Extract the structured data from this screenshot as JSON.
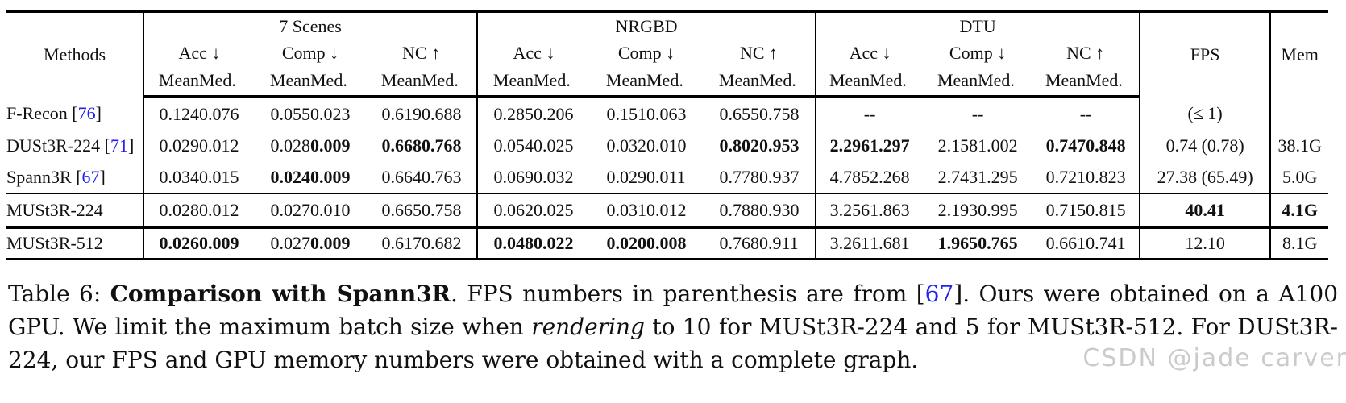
{
  "table": {
    "methods_label": "Methods",
    "fps_label": "FPS",
    "mem_label": "Mem",
    "sub_mean": "Mean",
    "sub_med": "Med.",
    "groups": [
      {
        "label": "7 Scenes",
        "metrics": [
          "Acc ↓",
          "Comp ↓",
          "NC ↑"
        ]
      },
      {
        "label": "NRGBD",
        "metrics": [
          "Acc ↓",
          "Comp ↓",
          "NC ↑"
        ]
      },
      {
        "label": "DTU",
        "metrics": [
          "Acc ↓",
          "Comp ↓",
          "NC ↑"
        ]
      }
    ],
    "rows": [
      {
        "method": "F-Recon",
        "ref": "76",
        "section": 0,
        "vals": [
          "0.124",
          "0.076",
          "0.055",
          "0.023",
          "0.619",
          "0.688",
          "0.285",
          "0.206",
          "0.151",
          "0.063",
          "0.655",
          "0.758",
          "-",
          "-",
          "-",
          "-",
          "-",
          "-"
        ],
        "bold": [],
        "fps": "(≤ 1)",
        "fps_bold": false,
        "mem": "",
        "mem_bold": false
      },
      {
        "method": "DUSt3R-224",
        "ref": "71",
        "section": 0,
        "vals": [
          "0.029",
          "0.012",
          "0.028",
          "0.009",
          "0.668",
          "0.768",
          "0.054",
          "0.025",
          "0.032",
          "0.010",
          "0.802",
          "0.953",
          "2.296",
          "1.297",
          "2.158",
          "1.002",
          "0.747",
          "0.848"
        ],
        "bold": [
          3,
          4,
          5,
          10,
          11,
          12,
          13,
          16,
          17
        ],
        "fps": "0.74 (0.78)",
        "fps_bold": false,
        "mem": "38.1G",
        "mem_bold": false
      },
      {
        "method": "Spann3R",
        "ref": "67",
        "section": 0,
        "vals": [
          "0.034",
          "0.015",
          "0.024",
          "0.009",
          "0.664",
          "0.763",
          "0.069",
          "0.032",
          "0.029",
          "0.011",
          "0.778",
          "0.937",
          "4.785",
          "2.268",
          "2.743",
          "1.295",
          "0.721",
          "0.823"
        ],
        "bold": [
          2,
          3
        ],
        "fps": "27.38 (65.49)",
        "fps_bold": false,
        "mem": "5.0G",
        "mem_bold": false
      },
      {
        "method": "MUSt3R-224",
        "ref": "",
        "section": 1,
        "vals": [
          "0.028",
          "0.012",
          "0.027",
          "0.010",
          "0.665",
          "0.758",
          "0.062",
          "0.025",
          "0.031",
          "0.012",
          "0.788",
          "0.930",
          "3.256",
          "1.863",
          "2.193",
          "0.995",
          "0.715",
          "0.815"
        ],
        "bold": [],
        "fps": "40.41",
        "fps_bold": true,
        "mem": "4.1G",
        "mem_bold": true
      },
      {
        "method": "MUSt3R-512",
        "ref": "",
        "section": 2,
        "vals": [
          "0.026",
          "0.009",
          "0.027",
          "0.009",
          "0.617",
          "0.682",
          "0.048",
          "0.022",
          "0.020",
          "0.008",
          "0.768",
          "0.911",
          "3.261",
          "1.681",
          "1.965",
          "0.765",
          "0.661",
          "0.741"
        ],
        "bold": [
          0,
          1,
          3,
          6,
          7,
          8,
          9,
          14,
          15
        ],
        "fps": "12.10",
        "fps_bold": false,
        "mem": "8.1G",
        "mem_bold": false
      }
    ]
  },
  "caption": {
    "segments": [
      {
        "t": "Table 6: ",
        "s": "n"
      },
      {
        "t": "Comparison with Spann3R",
        "s": "b"
      },
      {
        "t": ". FPS numbers in parenthesis are from [",
        "s": "n"
      },
      {
        "t": "67",
        "s": "r"
      },
      {
        "t": "]. Ours were obtained on a A100 GPU. We limit the maximum batch size when ",
        "s": "n"
      },
      {
        "t": "rendering",
        "s": "i"
      },
      {
        "t": " to 10 for MUSt3R-224 and 5 for MUSt3R-512. For DUSt3R-224, our FPS and GPU memory numbers were obtained with a complete graph.",
        "s": "n"
      }
    ]
  },
  "watermark": "CSDN @jade carver"
}
